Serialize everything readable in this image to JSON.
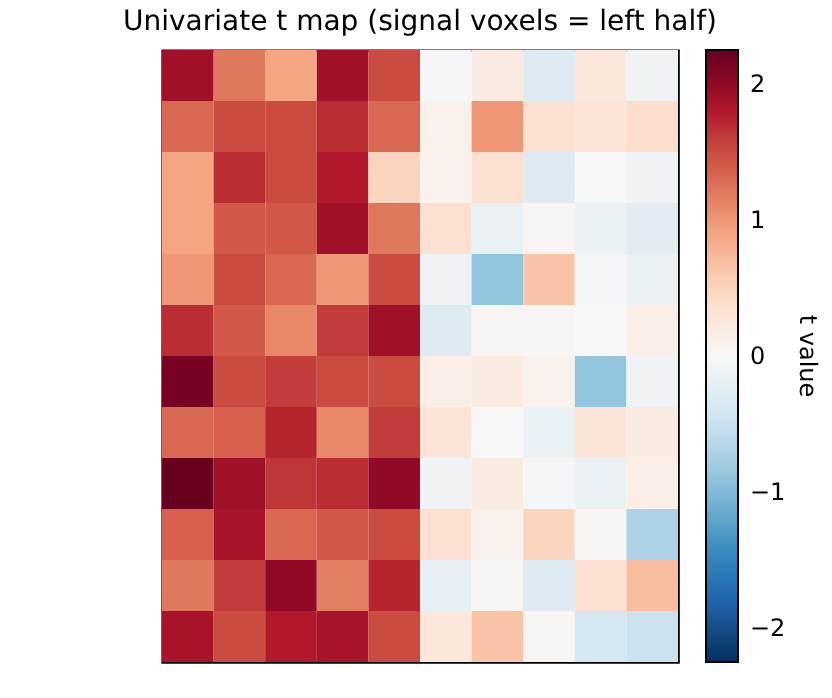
{
  "chart_data": {
    "type": "heatmap",
    "title": "Univariate t map (signal voxels = left half)",
    "clabel": "t value",
    "categories": [
      null,
      null,
      null,
      null,
      null,
      null,
      null,
      null,
      null,
      null
    ],
    "y_categories": [
      null,
      null,
      null,
      null,
      null,
      null,
      null,
      null,
      null,
      null,
      null,
      null
    ],
    "cells": [
      [
        1.9,
        1.2,
        0.9,
        1.9,
        1.5,
        -0.05,
        0.2,
        -0.3,
        0.25,
        -0.1
      ],
      [
        1.3,
        1.5,
        1.5,
        1.7,
        1.3,
        0.1,
        1.0,
        0.35,
        0.3,
        0.4
      ],
      [
        0.9,
        1.7,
        1.5,
        1.8,
        0.5,
        0.1,
        0.35,
        -0.3,
        0.0,
        -0.1
      ],
      [
        0.9,
        1.4,
        1.4,
        1.9,
        1.2,
        0.35,
        -0.15,
        0.05,
        -0.15,
        -0.25
      ],
      [
        1.0,
        1.5,
        1.3,
        1.0,
        1.5,
        -0.1,
        -0.9,
        0.65,
        -0.05,
        -0.15
      ],
      [
        1.7,
        1.4,
        1.1,
        1.6,
        1.9,
        -0.3,
        0.05,
        0.05,
        0.0,
        0.15
      ],
      [
        2.15,
        1.5,
        1.6,
        1.5,
        1.5,
        0.15,
        0.2,
        0.1,
        -0.9,
        -0.1
      ],
      [
        1.3,
        1.35,
        1.75,
        1.1,
        1.6,
        0.3,
        0.0,
        -0.15,
        0.3,
        0.2
      ],
      [
        2.25,
        1.9,
        1.65,
        1.7,
        2.0,
        -0.1,
        0.2,
        -0.05,
        -0.15,
        0.15
      ],
      [
        1.35,
        1.85,
        1.3,
        1.4,
        1.5,
        0.35,
        0.1,
        0.5,
        0.05,
        -0.7
      ],
      [
        1.2,
        1.6,
        2.0,
        1.15,
        1.75,
        -0.2,
        0.05,
        -0.3,
        0.35,
        0.7
      ],
      [
        1.85,
        1.5,
        1.8,
        1.85,
        1.5,
        0.25,
        0.65,
        0.05,
        -0.4,
        -0.5
      ]
    ],
    "clim": [
      -2.25,
      2.25
    ],
    "cticks": [
      -2,
      -1,
      0,
      1,
      2
    ]
  }
}
